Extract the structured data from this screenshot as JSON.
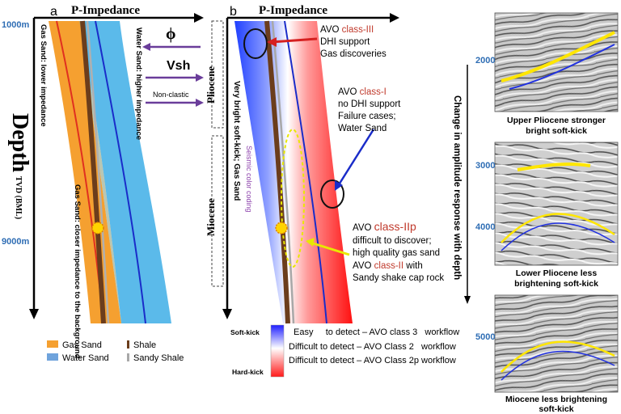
{
  "panel_a": {
    "letter": "a",
    "axis_title": "P-Impedance",
    "depth_top": "1000m",
    "depth_bottom": "9000m",
    "depth_label_big": "Depth",
    "depth_label_small": "TVD (BML)",
    "gas_sand_label": "Gas Sand: lower impedance",
    "water_sand_label": "Water Sand: higher impedance",
    "gas_sand_closer": "Gas Sand: closer impedance to the background",
    "phi_label": "ϕ",
    "vsh_label": "Vsh",
    "nonclastic_label": "Non-clastic"
  },
  "legend": {
    "gas_sand": "Gas Sand",
    "water_sand": "Water Sand",
    "shale": "Shale",
    "sandy_shale": "Sandy Shale",
    "colors": {
      "gas_sand": "#f5a030",
      "water_sand": "#6fa3dc",
      "shale": "#6b3d1c",
      "sandy_shale": "#a8a8a8"
    }
  },
  "panel_b": {
    "letter": "b",
    "axis_title": "P-Impedance",
    "pliocene": "Pliocene",
    "miocene": "Miocene",
    "very_bright": "Very bright soft-kick; Gas Sand",
    "seismic_coding": "Seismic color coding",
    "avo3_prefix": "AVO ",
    "avo3_class": "class-III",
    "avo3_lines": [
      "DHI support",
      "Gas discoveries"
    ],
    "avo1_prefix": "AVO ",
    "avo1_class": "class-I",
    "avo1_lines": [
      "no DHI support",
      "Failure cases;",
      "Water Sand"
    ],
    "avo2p_prefix": "AVO ",
    "avo2p_class": "class-IIp",
    "avo2p_lines": [
      "difficult to discover;",
      "high quality gas sand"
    ],
    "avo2_prefix": "AVO ",
    "avo2_class": "class-II",
    "avo2_suffix": " with",
    "avo2_line2": "Sandy shake cap rock"
  },
  "colorbar": {
    "soft_kick": "Soft-kick",
    "hard_kick": "Hard-kick",
    "row1": "Easy     to detect – AVO class 3   workflow",
    "row2": "Difficult to detect – AVO Class 2   workflow",
    "row3": "Difficult to detect – AVO Class 2p workflow"
  },
  "right_panel": {
    "change_label": "Change in amplitude response with depth",
    "seismic1": {
      "depth": "2000",
      "caption": [
        "Upper Pliocene stronger",
        "bright soft-kick"
      ]
    },
    "seismic2": {
      "depth_a": "3000",
      "depth_b": "4000",
      "caption": [
        "Lower Pliocene less",
        "brightening soft-kick"
      ]
    },
    "seismic3": {
      "depth": "5000",
      "caption": [
        "Miocene less brightening",
        "soft-kick"
      ]
    }
  },
  "colors": {
    "depth_blue": "#2e6db4",
    "red_label": "#c0392b",
    "purple_arrow": "#6a3d9a",
    "annotation_purple": "#8e44ad"
  }
}
